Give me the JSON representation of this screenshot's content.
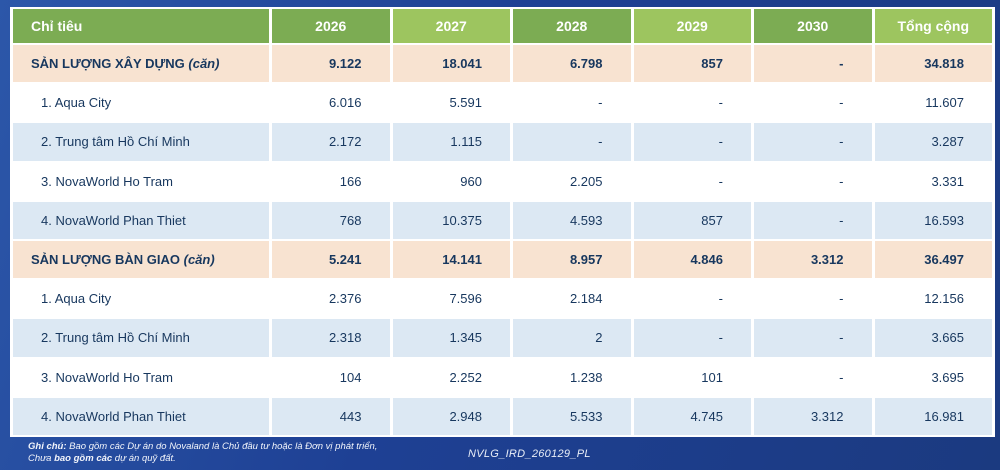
{
  "table": {
    "header": {
      "label_col": "Chỉ tiêu",
      "columns": [
        "2026",
        "2027",
        "2028",
        "2029",
        "2030",
        "Tổng cộng"
      ]
    },
    "sections": [
      {
        "title": "SẢN LƯỢNG XÂY DỰNG",
        "unit": "(căn)",
        "totals": [
          "9.122",
          "18.041",
          "6.798",
          "857",
          "-",
          "34.818"
        ],
        "rows": [
          {
            "label": "1. Aqua City",
            "values": [
              "6.016",
              "5.591",
              "-",
              "-",
              "-",
              "11.607"
            ]
          },
          {
            "label": "2. Trung tâm Hồ Chí Minh",
            "values": [
              "2.172",
              "1.115",
              "-",
              "-",
              "-",
              "3.287"
            ]
          },
          {
            "label": "3. NovaWorld Ho Tram",
            "values": [
              "166",
              "960",
              "2.205",
              "-",
              "-",
              "3.331"
            ]
          },
          {
            "label": "4. NovaWorld Phan Thiet",
            "values": [
              "768",
              "10.375",
              "4.593",
              "857",
              "-",
              "16.593"
            ]
          }
        ]
      },
      {
        "title": "SẢN LƯỢNG BÀN GIAO",
        "unit": "(căn)",
        "totals": [
          "5.241",
          "14.141",
          "8.957",
          "4.846",
          "3.312",
          "36.497"
        ],
        "rows": [
          {
            "label": "1. Aqua City",
            "values": [
              "2.376",
              "7.596",
              "2.184",
              "-",
              "-",
              "12.156"
            ]
          },
          {
            "label": "2. Trung tâm Hồ Chí Minh",
            "values": [
              "2.318",
              "1.345",
              "2",
              "-",
              "-",
              "3.665"
            ]
          },
          {
            "label": "3. NovaWorld Ho Tram",
            "values": [
              "104",
              "2.252",
              "1.238",
              "101",
              "-",
              "3.695"
            ]
          },
          {
            "label": "4. NovaWorld Phan Thiet",
            "values": [
              "443",
              "2.948",
              "5.533",
              "4.745",
              "3.312",
              "16.981"
            ]
          }
        ]
      }
    ]
  },
  "footer": {
    "note_label": "Ghi chú:",
    "note_line1": " Bao gồm các Dự án do Novaland là Chủ đầu tư hoặc là Đơn vị phát triển,",
    "note_line2_start": "Chưa ",
    "note_line2_bold": "bao gồm các",
    "note_line2_end": " dự án quỹ đất.",
    "doc_id": "NVLG_IRD_260129_PL"
  },
  "colors": {
    "frame_navy": "#1e4094",
    "header_green_dark": "#7cac53",
    "header_green_light": "#9dc55f",
    "section_peach": "#f8e3d1",
    "row_blue": "#dce8f3",
    "text_navy": "#17375e"
  }
}
